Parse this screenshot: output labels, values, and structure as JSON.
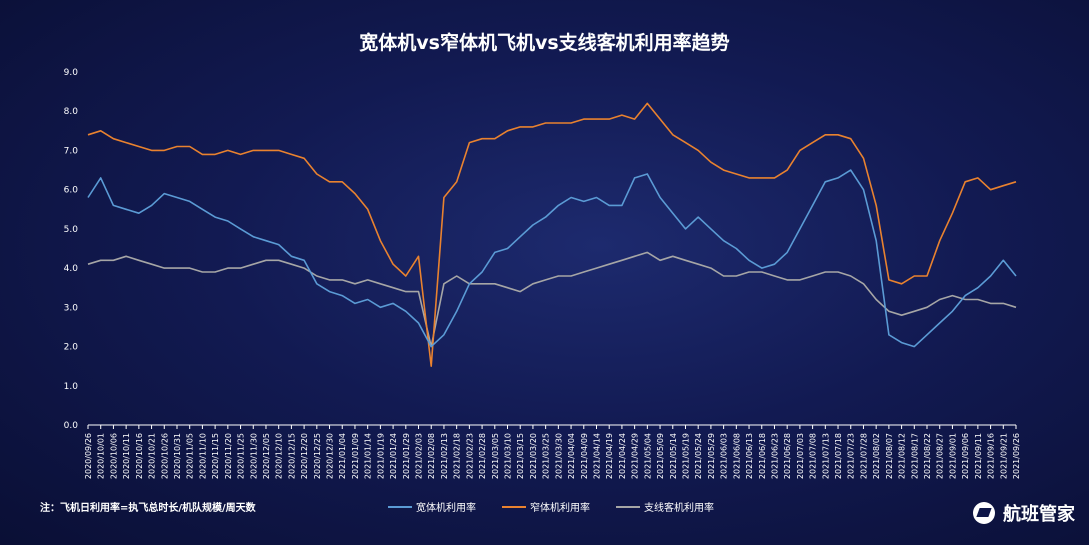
{
  "chart_data": {
    "type": "line",
    "title": "宽体机vs窄体机飞机vs支线客机利用率趋势",
    "note": "注：飞机日利用率=执飞总时长/机队规模/周天数",
    "brand": "航班管家",
    "ylim": [
      0,
      9
    ],
    "yticks": [
      "0.0",
      "1.0",
      "2.0",
      "3.0",
      "4.0",
      "5.0",
      "6.0",
      "7.0",
      "8.0",
      "9.0"
    ],
    "x_tick_labels": [
      "2020/09/26",
      "2020/10/01",
      "2020/10/06",
      "2020/10/11",
      "2020/10/16",
      "2020/10/21",
      "2020/10/26",
      "2020/10/31",
      "2020/11/05",
      "2020/11/10",
      "2020/11/15",
      "2020/11/20",
      "2020/11/25",
      "2020/11/30",
      "2020/12/05",
      "2020/12/10",
      "2020/12/15",
      "2020/12/20",
      "2020/12/25",
      "2020/12/30",
      "2021/01/04",
      "2021/01/09",
      "2021/01/14",
      "2021/01/19",
      "2021/01/24",
      "2021/01/29",
      "2021/02/03",
      "2021/02/08",
      "2021/02/13",
      "2021/02/18",
      "2021/02/23",
      "2021/02/28",
      "2021/03/05",
      "2021/03/10",
      "2021/03/15",
      "2021/03/20",
      "2021/03/25",
      "2021/03/30",
      "2021/04/04",
      "2021/04/09",
      "2021/04/14",
      "2021/04/19",
      "2021/04/24",
      "2021/04/29",
      "2021/05/04",
      "2021/05/09",
      "2021/05/14",
      "2021/05/19",
      "2021/05/24",
      "2021/05/29",
      "2021/06/03",
      "2021/06/08",
      "2021/06/13",
      "2021/06/18",
      "2021/06/23",
      "2021/06/28",
      "2021/07/03",
      "2021/07/08",
      "2021/07/13",
      "2021/07/18",
      "2021/07/23",
      "2021/07/28",
      "2021/08/02",
      "2021/08/07",
      "2021/08/12",
      "2021/08/17",
      "2021/08/22",
      "2021/08/27",
      "2021/09/01",
      "2021/09/06",
      "2021/09/11",
      "2021/09/16",
      "2021/09/21",
      "2021/09/26"
    ],
    "series": [
      {
        "name": "宽体机利用率",
        "color": "#5b9bd5",
        "values": [
          5.8,
          6.3,
          5.6,
          5.5,
          5.4,
          5.6,
          5.9,
          5.8,
          5.7,
          5.5,
          5.3,
          5.2,
          5.0,
          4.8,
          4.7,
          4.6,
          4.3,
          4.2,
          3.6,
          3.4,
          3.3,
          3.1,
          3.2,
          3.0,
          3.1,
          2.9,
          2.6,
          2.0,
          2.3,
          2.9,
          3.6,
          3.9,
          4.4,
          4.5,
          4.8,
          5.1,
          5.3,
          5.6,
          5.8,
          5.7,
          5.8,
          5.6,
          5.6,
          6.3,
          6.4,
          5.8,
          5.4,
          5.0,
          5.3,
          5.0,
          4.7,
          4.5,
          4.2,
          4.0,
          4.1,
          4.4,
          5.0,
          5.6,
          6.2,
          6.3,
          6.5,
          6.0,
          4.7,
          2.3,
          2.1,
          2.0,
          2.3,
          2.6,
          2.9,
          3.3,
          3.5,
          3.8,
          4.2,
          3.8
        ]
      },
      {
        "name": "窄体机利用率",
        "color": "#e9822f",
        "values": [
          7.4,
          7.5,
          7.3,
          7.2,
          7.1,
          7.0,
          7.0,
          7.1,
          7.1,
          6.9,
          6.9,
          7.0,
          6.9,
          7.0,
          7.0,
          7.0,
          6.9,
          6.8,
          6.4,
          6.2,
          6.2,
          5.9,
          5.5,
          4.7,
          4.1,
          3.8,
          4.3,
          1.5,
          5.8,
          6.2,
          7.2,
          7.3,
          7.3,
          7.5,
          7.6,
          7.6,
          7.7,
          7.7,
          7.7,
          7.8,
          7.8,
          7.8,
          7.9,
          7.8,
          8.2,
          7.8,
          7.4,
          7.2,
          7.0,
          6.7,
          6.5,
          6.4,
          6.3,
          6.3,
          6.3,
          6.5,
          7.0,
          7.2,
          7.4,
          7.4,
          7.3,
          6.8,
          5.6,
          3.7,
          3.6,
          3.8,
          3.8,
          4.7,
          5.4,
          6.2,
          6.3,
          6.0,
          6.1,
          6.2
        ]
      },
      {
        "name": "支线客机利用率",
        "color": "#a6a6a6",
        "values": [
          4.1,
          4.2,
          4.2,
          4.3,
          4.2,
          4.1,
          4.0,
          4.0,
          4.0,
          3.9,
          3.9,
          4.0,
          4.0,
          4.1,
          4.2,
          4.2,
          4.1,
          4.0,
          3.8,
          3.7,
          3.7,
          3.6,
          3.7,
          3.6,
          3.5,
          3.4,
          3.4,
          2.0,
          3.6,
          3.8,
          3.6,
          3.6,
          3.6,
          3.5,
          3.4,
          3.6,
          3.7,
          3.8,
          3.8,
          3.9,
          4.0,
          4.1,
          4.2,
          4.3,
          4.4,
          4.2,
          4.3,
          4.2,
          4.1,
          4.0,
          3.8,
          3.8,
          3.9,
          3.9,
          3.8,
          3.7,
          3.7,
          3.8,
          3.9,
          3.9,
          3.8,
          3.6,
          3.2,
          2.9,
          2.8,
          2.9,
          3.0,
          3.2,
          3.3,
          3.2,
          3.2,
          3.1,
          3.1,
          3.0
        ]
      }
    ],
    "xlabel": "",
    "ylabel": "",
    "grid": false,
    "legend_position": "bottom"
  }
}
